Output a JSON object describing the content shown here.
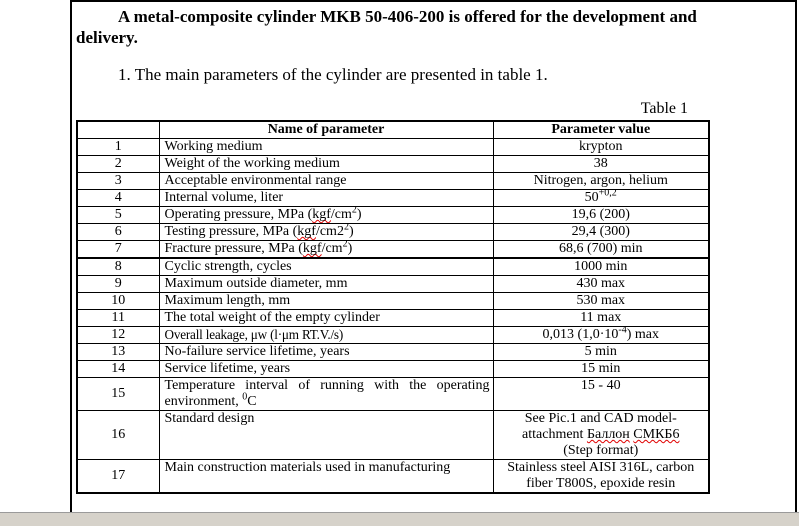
{
  "page": {
    "title": "A metal-composite cylinder MKB 50-406-200 is offered for the development and delivery.",
    "intro": "1. The main parameters of the cylinder are presented in table 1.",
    "table_caption": "Table 1"
  },
  "table": {
    "headers": [
      "",
      "Name of parameter",
      "Parameter value"
    ],
    "rows": [
      {
        "num": "1",
        "name": [
          {
            "t": "Working medium"
          }
        ],
        "value": [
          {
            "t": "krypton"
          }
        ]
      },
      {
        "num": "2",
        "name": [
          {
            "t": "Weight of the working medium"
          }
        ],
        "value": [
          {
            "t": "38"
          }
        ]
      },
      {
        "num": "3",
        "name": [
          {
            "t": "Acceptable environmental range"
          }
        ],
        "value": [
          {
            "t": "Nitrogen, argon, helium"
          }
        ]
      },
      {
        "num": "4",
        "name": [
          {
            "t": "Internal volume, liter"
          }
        ],
        "value": [
          {
            "t": "50"
          },
          {
            "t": "+0,2",
            "sup": true
          }
        ]
      },
      {
        "num": "5",
        "name": [
          {
            "t": "Operating pressure, MPa ("
          },
          {
            "t": "kgf",
            "misspell": true
          },
          {
            "t": "/cm"
          },
          {
            "t": "2",
            "sup": true
          },
          {
            "t": ")"
          }
        ],
        "value": [
          {
            "t": "19,6 (200)"
          }
        ]
      },
      {
        "num": "6",
        "name": [
          {
            "t": "Testing pressure, MPa ("
          },
          {
            "t": "kgf",
            "misspell": true
          },
          {
            "t": "/cm2"
          },
          {
            "t": "2",
            "sup": true
          },
          {
            "t": ")"
          }
        ],
        "value": [
          {
            "t": "29,4 (300)"
          }
        ]
      },
      {
        "num": "7",
        "name": [
          {
            "t": "Fracture pressure, MPa ("
          },
          {
            "t": "kgf",
            "misspell": true
          },
          {
            "t": "/cm"
          },
          {
            "t": "2",
            "sup": true
          },
          {
            "t": ")"
          }
        ],
        "value": [
          {
            "t": "68,6 (700) min"
          }
        ],
        "thick_bottom": true
      },
      {
        "num": "8",
        "name": [
          {
            "t": "Cyclic strength, cycles"
          }
        ],
        "value": [
          {
            "t": "1000 min"
          }
        ]
      },
      {
        "num": "9",
        "name": [
          {
            "t": "Maximum outside diameter, mm"
          }
        ],
        "value": [
          {
            "t": "430 max"
          }
        ]
      },
      {
        "num": "10",
        "name": [
          {
            "t": "Maximum length, mm"
          }
        ],
        "value": [
          {
            "t": "530 max"
          }
        ]
      },
      {
        "num": "11",
        "name": [
          {
            "t": "The total weight of the empty cylinder"
          }
        ],
        "value": [
          {
            "t": "11 max"
          }
        ]
      },
      {
        "num": "12",
        "name": [
          {
            "t": "Overall leakage, μw (l·μm RT.V./s)"
          }
        ],
        "value": [
          {
            "t": "0,013 (1,0·10"
          },
          {
            "t": "-4",
            "sup": true
          },
          {
            "t": ") max"
          }
        ],
        "condensed": true
      },
      {
        "num": "13",
        "name": [
          {
            "t": "No-failure service lifetime, years"
          }
        ],
        "value": [
          {
            "t": "5 min"
          }
        ]
      },
      {
        "num": "14",
        "name": [
          {
            "t": "Service lifetime, years"
          }
        ],
        "value": [
          {
            "t": "15 min"
          }
        ]
      },
      {
        "num": "15",
        "name": [
          {
            "t": "Temperature interval of running with the operating environment, "
          },
          {
            "t": "0",
            "sup": true
          },
          {
            "t": "C"
          }
        ],
        "value": [
          {
            "t": "15 - 40"
          }
        ],
        "justify": true
      },
      {
        "num": "16",
        "name": [
          {
            "t": "Standard design"
          }
        ],
        "value": [
          {
            "t": "See Pic.1 and CAD model-"
          },
          {
            "br": true
          },
          {
            "t": "attachment "
          },
          {
            "t": "Баллон",
            "misspell": true
          },
          {
            "t": " "
          },
          {
            "t": "СМКБ6",
            "misspell": true
          },
          {
            "br": true
          },
          {
            "t": "(Step format)"
          }
        ]
      },
      {
        "num": "17",
        "name": [
          {
            "t": "Main construction materials used in manufacturing"
          }
        ],
        "value": [
          {
            "t": "Stainless steel AISI 316L, carbon"
          },
          {
            "br": true
          },
          {
            "t": "fiber T800S, epoxide resin"
          }
        ]
      }
    ]
  }
}
